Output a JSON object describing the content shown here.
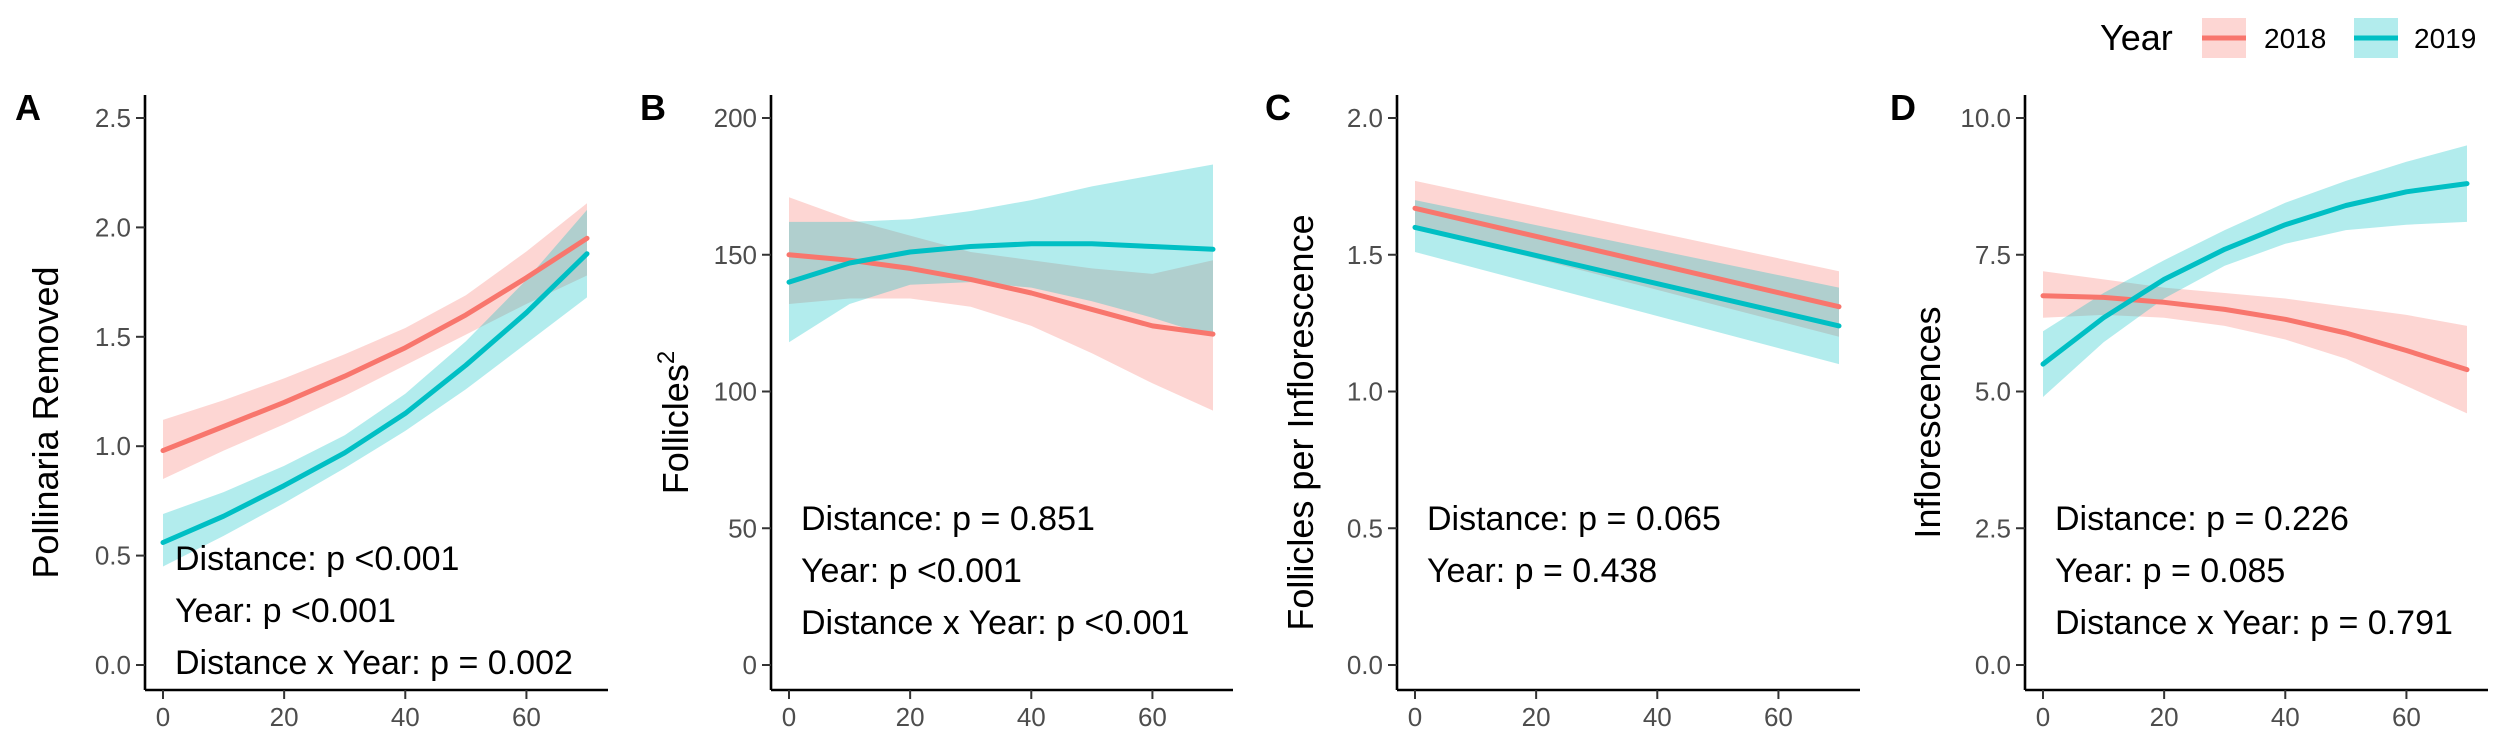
{
  "legend": {
    "title": "Year",
    "items": [
      {
        "label": "2018",
        "color": "#F8766D"
      },
      {
        "label": "2019",
        "color": "#00BFC4"
      }
    ]
  },
  "chart_data": [
    {
      "panel": "A",
      "type": "line",
      "ylabel": "Pollinaria Removed",
      "xlim": [
        0,
        70
      ],
      "ylim": [
        0,
        2.5
      ],
      "xticks": [
        0,
        20,
        40,
        60
      ],
      "yticks": [
        "0.0",
        "0.5",
        "1.0",
        "1.5",
        "2.0",
        "2.5"
      ],
      "series": [
        {
          "name": "2018",
          "color": "#F8766D",
          "x": [
            0,
            10,
            20,
            30,
            40,
            50,
            60,
            70
          ],
          "y": [
            0.98,
            1.09,
            1.2,
            1.32,
            1.45,
            1.6,
            1.77,
            1.95
          ],
          "lower": [
            0.85,
            0.98,
            1.1,
            1.23,
            1.37,
            1.51,
            1.65,
            1.78
          ],
          "upper": [
            1.12,
            1.21,
            1.31,
            1.42,
            1.54,
            1.69,
            1.89,
            2.11
          ]
        },
        {
          "name": "2019",
          "color": "#00BFC4",
          "x": [
            0,
            10,
            20,
            30,
            40,
            50,
            60,
            70
          ],
          "y": [
            0.56,
            0.68,
            0.82,
            0.97,
            1.15,
            1.37,
            1.61,
            1.88
          ],
          "lower": [
            0.45,
            0.59,
            0.74,
            0.9,
            1.07,
            1.26,
            1.47,
            1.68
          ],
          "upper": [
            0.69,
            0.79,
            0.91,
            1.05,
            1.24,
            1.48,
            1.76,
            2.08
          ]
        }
      ],
      "annotations": [
        "Distance: p <0.001",
        "Year: p <0.001",
        "Distance x Year: p = 0.002"
      ]
    },
    {
      "panel": "B",
      "type": "line",
      "ylabel": "Follicles",
      "ylabel_sup": "2",
      "xlim": [
        0,
        70
      ],
      "ylim": [
        0,
        200
      ],
      "xticks": [
        0,
        20,
        40,
        60
      ],
      "yticks": [
        "0",
        "50",
        "100",
        "150",
        "200"
      ],
      "series": [
        {
          "name": "2018",
          "color": "#F8766D",
          "x": [
            0,
            10,
            20,
            30,
            40,
            50,
            60,
            70
          ],
          "y": [
            150,
            148,
            145,
            141,
            136,
            130,
            124,
            121
          ],
          "lower": [
            132,
            134,
            134,
            131,
            124,
            114,
            103,
            93
          ],
          "upper": [
            171,
            163,
            157,
            151,
            148,
            145,
            143,
            148
          ]
        },
        {
          "name": "2019",
          "color": "#00BFC4",
          "x": [
            0,
            10,
            20,
            30,
            40,
            50,
            60,
            70
          ],
          "y": [
            140,
            147,
            151,
            153,
            154,
            154,
            153,
            152
          ],
          "lower": [
            118,
            132,
            139,
            140,
            138,
            133,
            127,
            120
          ],
          "upper": [
            162,
            162,
            163,
            166,
            170,
            175,
            179,
            183
          ]
        }
      ],
      "annotations": [
        "Distance: p = 0.851",
        "Year: p <0.001",
        "Distance x Year: p <0.001"
      ]
    },
    {
      "panel": "C",
      "type": "line",
      "ylabel": "Follicles per Inflorescence",
      "xlim": [
        0,
        70
      ],
      "ylim": [
        0,
        2.0
      ],
      "xticks": [
        0,
        20,
        40,
        60
      ],
      "yticks": [
        "0.0",
        "0.5",
        "1.0",
        "1.5",
        "2.0"
      ],
      "series": [
        {
          "name": "2018",
          "color": "#F8766D",
          "x": [
            0,
            70
          ],
          "y": [
            1.67,
            1.31
          ],
          "lower": [
            1.6,
            1.2
          ],
          "upper": [
            1.77,
            1.44
          ]
        },
        {
          "name": "2019",
          "color": "#00BFC4",
          "x": [
            0,
            70
          ],
          "y": [
            1.6,
            1.24
          ],
          "lower": [
            1.51,
            1.1
          ],
          "upper": [
            1.7,
            1.38
          ]
        }
      ],
      "annotations": [
        "Distance: p = 0.065",
        "Year: p = 0.438"
      ]
    },
    {
      "panel": "D",
      "type": "line",
      "ylabel": "Inflorescences",
      "xlim": [
        0,
        70
      ],
      "ylim": [
        0,
        10.0
      ],
      "xticks": [
        0,
        20,
        40,
        60
      ],
      "yticks": [
        "0.0",
        "2.5",
        "5.0",
        "7.5",
        "10.0"
      ],
      "series": [
        {
          "name": "2018",
          "color": "#F8766D",
          "x": [
            0,
            10,
            20,
            30,
            40,
            50,
            60,
            70
          ],
          "y": [
            6.75,
            6.72,
            6.63,
            6.5,
            6.32,
            6.07,
            5.75,
            5.4
          ],
          "lower": [
            6.35,
            6.4,
            6.35,
            6.2,
            5.95,
            5.6,
            5.1,
            4.6
          ],
          "upper": [
            7.2,
            7.05,
            6.9,
            6.8,
            6.7,
            6.55,
            6.4,
            6.2
          ]
        },
        {
          "name": "2019",
          "color": "#00BFC4",
          "x": [
            0,
            10,
            20,
            30,
            40,
            50,
            60,
            70
          ],
          "y": [
            5.5,
            6.35,
            7.05,
            7.6,
            8.05,
            8.4,
            8.65,
            8.8
          ],
          "lower": [
            4.9,
            5.9,
            6.7,
            7.3,
            7.7,
            7.95,
            8.05,
            8.1
          ],
          "upper": [
            6.1,
            6.8,
            7.4,
            7.95,
            8.45,
            8.85,
            9.2,
            9.5
          ]
        }
      ],
      "annotations": [
        "Distance: p = 0.226",
        "Year: p = 0.085",
        "Distance x Year: p = 0.791"
      ]
    }
  ]
}
